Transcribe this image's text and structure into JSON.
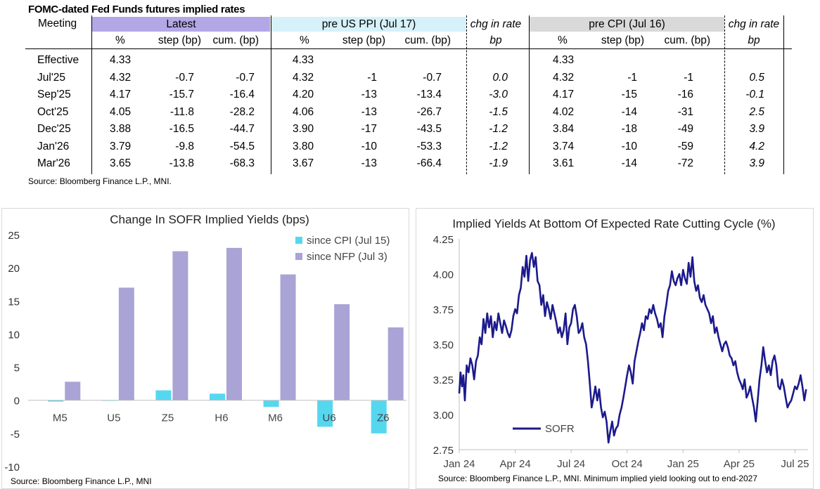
{
  "table": {
    "title": "FOMC-dated Fed Funds futures implied rates",
    "meeting_header": "Meeting",
    "groups": {
      "latest": "Latest",
      "pre_ppi": "pre US PPI (Jul 17)",
      "chg1": "chg in rate",
      "pre_cpi": "pre CPI (Jul 16)",
      "chg2": "chg in rate"
    },
    "subheaders": {
      "pct": "%",
      "step": "step (bp)",
      "cum": "cum. (bp)",
      "bp": "bp"
    },
    "colors": {
      "latest": "#b4a7e5",
      "pre_ppi": "#d6f1fa",
      "pre_cpi": "#d9d9d9"
    },
    "rows": [
      {
        "meeting": "Effective",
        "latest_pct": "4.33",
        "latest_step": "",
        "latest_cum": "",
        "ppi_pct": "4.33",
        "ppi_step": "",
        "ppi_cum": "",
        "chg1": "",
        "cpi_pct": "4.33",
        "cpi_step": "",
        "cpi_cum": "",
        "chg2": ""
      },
      {
        "meeting": "Jul'25",
        "latest_pct": "4.32",
        "latest_step": "-0.7",
        "latest_cum": "-0.7",
        "ppi_pct": "4.32",
        "ppi_step": "-1",
        "ppi_cum": "-0.7",
        "chg1": "0.0",
        "cpi_pct": "4.32",
        "cpi_step": "-1",
        "cpi_cum": "-1",
        "chg2": "0.5"
      },
      {
        "meeting": "Sep'25",
        "latest_pct": "4.17",
        "latest_step": "-15.7",
        "latest_cum": "-16.4",
        "ppi_pct": "4.20",
        "ppi_step": "-13",
        "ppi_cum": "-13.4",
        "chg1": "-3.0",
        "cpi_pct": "4.17",
        "cpi_step": "-15",
        "cpi_cum": "-16",
        "chg2": "-0.1"
      },
      {
        "meeting": "Oct'25",
        "latest_pct": "4.05",
        "latest_step": "-11.8",
        "latest_cum": "-28.2",
        "ppi_pct": "4.06",
        "ppi_step": "-13",
        "ppi_cum": "-26.7",
        "chg1": "-1.5",
        "cpi_pct": "4.02",
        "cpi_step": "-14",
        "cpi_cum": "-31",
        "chg2": "2.5"
      },
      {
        "meeting": "Dec'25",
        "latest_pct": "3.88",
        "latest_step": "-16.5",
        "latest_cum": "-44.7",
        "ppi_pct": "3.90",
        "ppi_step": "-17",
        "ppi_cum": "-43.5",
        "chg1": "-1.2",
        "cpi_pct": "3.84",
        "cpi_step": "-18",
        "cpi_cum": "-49",
        "chg2": "3.9"
      },
      {
        "meeting": "Jan'26",
        "latest_pct": "3.79",
        "latest_step": "-9.8",
        "latest_cum": "-54.5",
        "ppi_pct": "3.80",
        "ppi_step": "-10",
        "ppi_cum": "-53.3",
        "chg1": "-1.2",
        "cpi_pct": "3.74",
        "cpi_step": "-10",
        "cpi_cum": "-59",
        "chg2": "4.2"
      },
      {
        "meeting": "Mar'26",
        "latest_pct": "3.65",
        "latest_step": "-13.8",
        "latest_cum": "-68.3",
        "ppi_pct": "3.67",
        "ppi_step": "-13",
        "ppi_cum": "-66.4",
        "chg1": "-1.9",
        "cpi_pct": "3.61",
        "cpi_step": "-14",
        "cpi_cum": "-72",
        "chg2": "3.9"
      }
    ],
    "source": "Source: Bloomberg Finance L.P., MNI."
  },
  "chart_data": [
    {
      "type": "bar",
      "title": "Change In SOFR Implied Yields (bps)",
      "categories": [
        "M5",
        "U5",
        "Z5",
        "H6",
        "M6",
        "U6",
        "Z6"
      ],
      "series": [
        {
          "name": "since CPI (Jul 15)",
          "color": "#56d7f0",
          "values": [
            -0.2,
            0,
            1.5,
            1.0,
            -1.0,
            -4.0,
            -5.0
          ]
        },
        {
          "name": "since NFP (Jul 3)",
          "color": "#a9a3d6",
          "values": [
            2.8,
            17,
            22.5,
            23,
            19,
            14.5,
            11
          ]
        }
      ],
      "ylim": [
        -10,
        25
      ],
      "yticks": [
        "-10",
        "-5",
        "0",
        "5",
        "10",
        "15",
        "20",
        "25"
      ],
      "xlabel": "",
      "ylabel": "",
      "legend": "top-right",
      "source": "Source: Bloomberg Finance L.P., MNI"
    },
    {
      "type": "line",
      "title": "Implied Yields At Bottom Of Expected Rate Cutting Cycle (%)",
      "series": [
        {
          "name": "SOFR",
          "color": "#1c1a8c",
          "x_months": [
            0.0,
            0.07,
            0.15,
            0.22,
            0.3,
            0.4,
            0.5,
            0.6,
            0.7,
            0.8,
            0.9,
            1.0,
            1.1,
            1.2,
            1.3,
            1.4,
            1.5,
            1.6,
            1.7,
            1.8,
            1.9,
            2.0,
            2.1,
            2.2,
            2.3,
            2.4,
            2.5,
            2.6,
            2.7,
            2.8,
            2.9,
            3.0,
            3.1,
            3.2,
            3.3,
            3.4,
            3.5,
            3.6,
            3.7,
            3.8,
            3.9,
            4.0,
            4.1,
            4.2,
            4.3,
            4.4,
            4.5,
            4.6,
            4.7,
            4.8,
            4.9,
            5.0,
            5.1,
            5.2,
            5.3,
            5.4,
            5.5,
            5.6,
            5.7,
            5.8,
            5.9,
            6.0,
            6.1,
            6.2,
            6.3,
            6.4,
            6.5,
            6.6,
            6.7,
            6.8,
            6.9,
            7.0,
            7.1,
            7.2,
            7.3,
            7.4,
            7.5,
            7.6,
            7.7,
            7.8,
            7.9,
            8.0,
            8.1,
            8.2,
            8.3,
            8.4,
            8.5,
            8.6,
            8.7,
            8.8,
            8.9,
            9.0,
            9.1,
            9.2,
            9.3,
            9.4,
            9.5,
            9.6,
            9.7,
            9.8,
            9.9,
            10.0,
            10.1,
            10.2,
            10.3,
            10.4,
            10.5,
            10.6,
            10.7,
            10.8,
            10.9,
            11.0,
            11.1,
            11.2,
            11.3,
            11.4,
            11.5,
            11.6,
            11.7,
            11.8,
            11.9,
            12.0,
            12.1,
            12.2,
            12.3,
            12.4,
            12.5,
            12.6,
            12.7,
            12.8,
            12.9,
            13.0,
            13.1,
            13.2,
            13.3,
            13.4,
            13.5,
            13.6,
            13.7,
            13.8,
            13.9,
            14.0,
            14.1,
            14.2,
            14.3,
            14.4,
            14.5,
            14.6,
            14.7,
            14.8,
            14.9,
            15.0,
            15.1,
            15.2,
            15.3,
            15.4,
            15.5,
            15.6,
            15.7,
            15.8,
            15.9,
            16.0,
            16.1,
            16.2,
            16.3,
            16.4,
            16.5,
            16.6,
            16.7,
            16.8,
            16.9,
            17.0,
            17.1,
            17.2,
            17.3,
            17.4,
            17.5,
            17.6,
            17.7,
            17.8,
            17.9,
            18.0,
            18.1,
            18.2,
            18.3,
            18.4,
            18.5,
            18.6
          ],
          "values": [
            3.15,
            3.3,
            3.2,
            3.28,
            3.1,
            3.35,
            3.3,
            3.4,
            3.35,
            3.25,
            3.38,
            3.42,
            3.55,
            3.5,
            3.68,
            3.58,
            3.72,
            3.62,
            3.7,
            3.55,
            3.66,
            3.6,
            3.72,
            3.65,
            3.58,
            3.67,
            3.63,
            3.58,
            3.55,
            3.6,
            3.7,
            3.75,
            3.72,
            3.85,
            3.9,
            4.05,
            3.98,
            4.13,
            3.95,
            4.1,
            4.15,
            4.05,
            4.12,
            3.95,
            3.92,
            3.78,
            3.85,
            3.7,
            3.8,
            3.75,
            3.68,
            3.78,
            3.72,
            3.66,
            3.58,
            3.62,
            3.55,
            3.6,
            3.72,
            3.5,
            3.62,
            3.65,
            3.75,
            3.78,
            3.7,
            3.58,
            3.6,
            3.65,
            3.55,
            3.5,
            3.38,
            3.22,
            3.05,
            3.12,
            3.2,
            3.1,
            3.18,
            3.05,
            2.98,
            3.02,
            2.95,
            2.8,
            2.88,
            2.95,
            2.85,
            2.9,
            2.92,
            3.0,
            3.05,
            3.12,
            3.2,
            3.28,
            3.35,
            3.3,
            3.22,
            3.38,
            3.45,
            3.52,
            3.58,
            3.65,
            3.6,
            3.7,
            3.68,
            3.75,
            3.72,
            3.78,
            3.72,
            3.68,
            3.62,
            3.65,
            3.55,
            3.7,
            3.78,
            3.88,
            3.92,
            4.02,
            3.95,
            3.92,
            3.97,
            4.0,
            3.92,
            4.03,
            3.97,
            3.93,
            4.08,
            3.98,
            4.12,
            3.95,
            3.88,
            3.92,
            3.83,
            3.8,
            3.85,
            3.78,
            3.75,
            3.72,
            3.65,
            3.7,
            3.58,
            3.62,
            3.55,
            3.5,
            3.45,
            3.5,
            3.52,
            3.48,
            3.42,
            3.4,
            3.35,
            3.38,
            3.3,
            3.25,
            3.22,
            3.18,
            3.25,
            3.12,
            3.15,
            3.2,
            3.12,
            3.05,
            2.95,
            3.1,
            3.25,
            3.35,
            3.48,
            3.38,
            3.3,
            3.35,
            3.28,
            3.38,
            3.42,
            3.35,
            3.2,
            3.18,
            3.25,
            3.2,
            3.12,
            3.05,
            3.08,
            3.1,
            3.15,
            3.2,
            3.18,
            3.22,
            3.28,
            3.2,
            3.1,
            3.18
          ]
        }
      ],
      "xticks": [
        "Jan 24",
        "Apr 24",
        "Jul 24",
        "Oct 24",
        "Jan 25",
        "Apr 25",
        "Jul 25"
      ],
      "xtick_months": [
        0,
        3,
        6,
        9,
        12,
        15,
        18
      ],
      "ylim": [
        2.75,
        4.25
      ],
      "yticks": [
        "2.75",
        "3.00",
        "3.25",
        "3.50",
        "3.75",
        "4.00",
        "4.25"
      ],
      "xlabel": "",
      "ylabel": "",
      "legend": "bottom-left",
      "source": "Source: Bloomberg Finance L.P., MNI. Minimum implied yield looking out to end-2027"
    }
  ]
}
